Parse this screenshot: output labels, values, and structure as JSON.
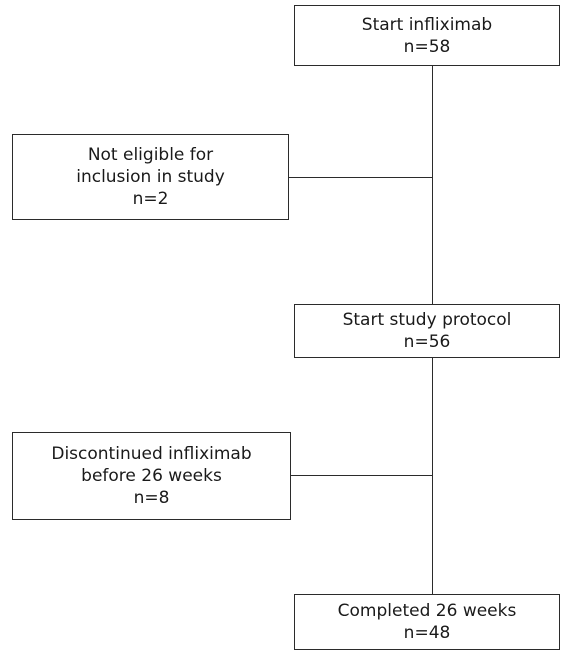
{
  "flowchart": {
    "start": {
      "label": "Start infliximab",
      "count": "n=58"
    },
    "excluded": {
      "line1": "Not eligible for",
      "line2": "inclusion in study",
      "count": "n=2"
    },
    "protocol": {
      "label": "Start study protocol",
      "count": "n=56"
    },
    "discontinued": {
      "line1": "Discontinued infliximab",
      "line2": "before 26 weeks",
      "count": "n=8"
    },
    "completed": {
      "label": "Completed 26 weeks",
      "count": "n=48"
    }
  }
}
